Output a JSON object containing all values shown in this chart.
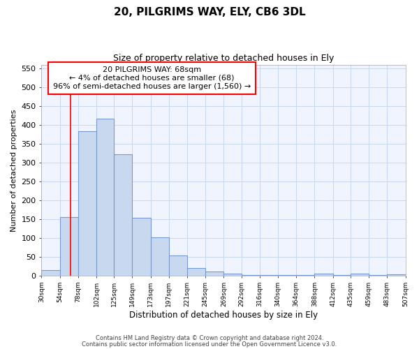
{
  "title": "20, PILGRIMS WAY, ELY, CB6 3DL",
  "subtitle": "Size of property relative to detached houses in Ely",
  "xlabel": "Distribution of detached houses by size in Ely",
  "ylabel": "Number of detached properties",
  "footnote1": "Contains HM Land Registry data © Crown copyright and database right 2024.",
  "footnote2": "Contains public sector information licensed under the Open Government Licence v3.0.",
  "annotation_line1": "20 PILGRIMS WAY: 68sqm",
  "annotation_line2": "← 4% of detached houses are smaller (68)",
  "annotation_line3": "96% of semi-detached houses are larger (1,560) →",
  "bar_left_edges": [
    30,
    54,
    78,
    102,
    125,
    149,
    173,
    197,
    221,
    245,
    269,
    292,
    316,
    340,
    364,
    388,
    412,
    435,
    459,
    483
  ],
  "bar_widths": [
    24,
    24,
    24,
    23,
    24,
    24,
    24,
    24,
    24,
    24,
    23,
    24,
    24,
    24,
    24,
    24,
    23,
    24,
    24,
    24
  ],
  "bar_heights": [
    15,
    155,
    383,
    418,
    322,
    153,
    101,
    54,
    20,
    11,
    5,
    2,
    2,
    1,
    1,
    5,
    1,
    5,
    1,
    4
  ],
  "bar_color": "#c8d8ee",
  "bar_edge_color": "#7799cc",
  "tick_labels": [
    "30sqm",
    "54sqm",
    "78sqm",
    "102sqm",
    "125sqm",
    "149sqm",
    "173sqm",
    "197sqm",
    "221sqm",
    "245sqm",
    "269sqm",
    "292sqm",
    "316sqm",
    "340sqm",
    "364sqm",
    "388sqm",
    "412sqm",
    "435sqm",
    "459sqm",
    "483sqm",
    "507sqm"
  ],
  "tick_positions": [
    30,
    54,
    78,
    102,
    125,
    149,
    173,
    197,
    221,
    245,
    269,
    292,
    316,
    340,
    364,
    388,
    412,
    435,
    459,
    483,
    507
  ],
  "red_line_x": 68,
  "ylim": [
    0,
    560
  ],
  "yticks": [
    0,
    50,
    100,
    150,
    200,
    250,
    300,
    350,
    400,
    450,
    500,
    550
  ],
  "grid_color": "#c8d8f0",
  "background_color": "#ffffff",
  "plot_bg_color": "#f0f4ff"
}
